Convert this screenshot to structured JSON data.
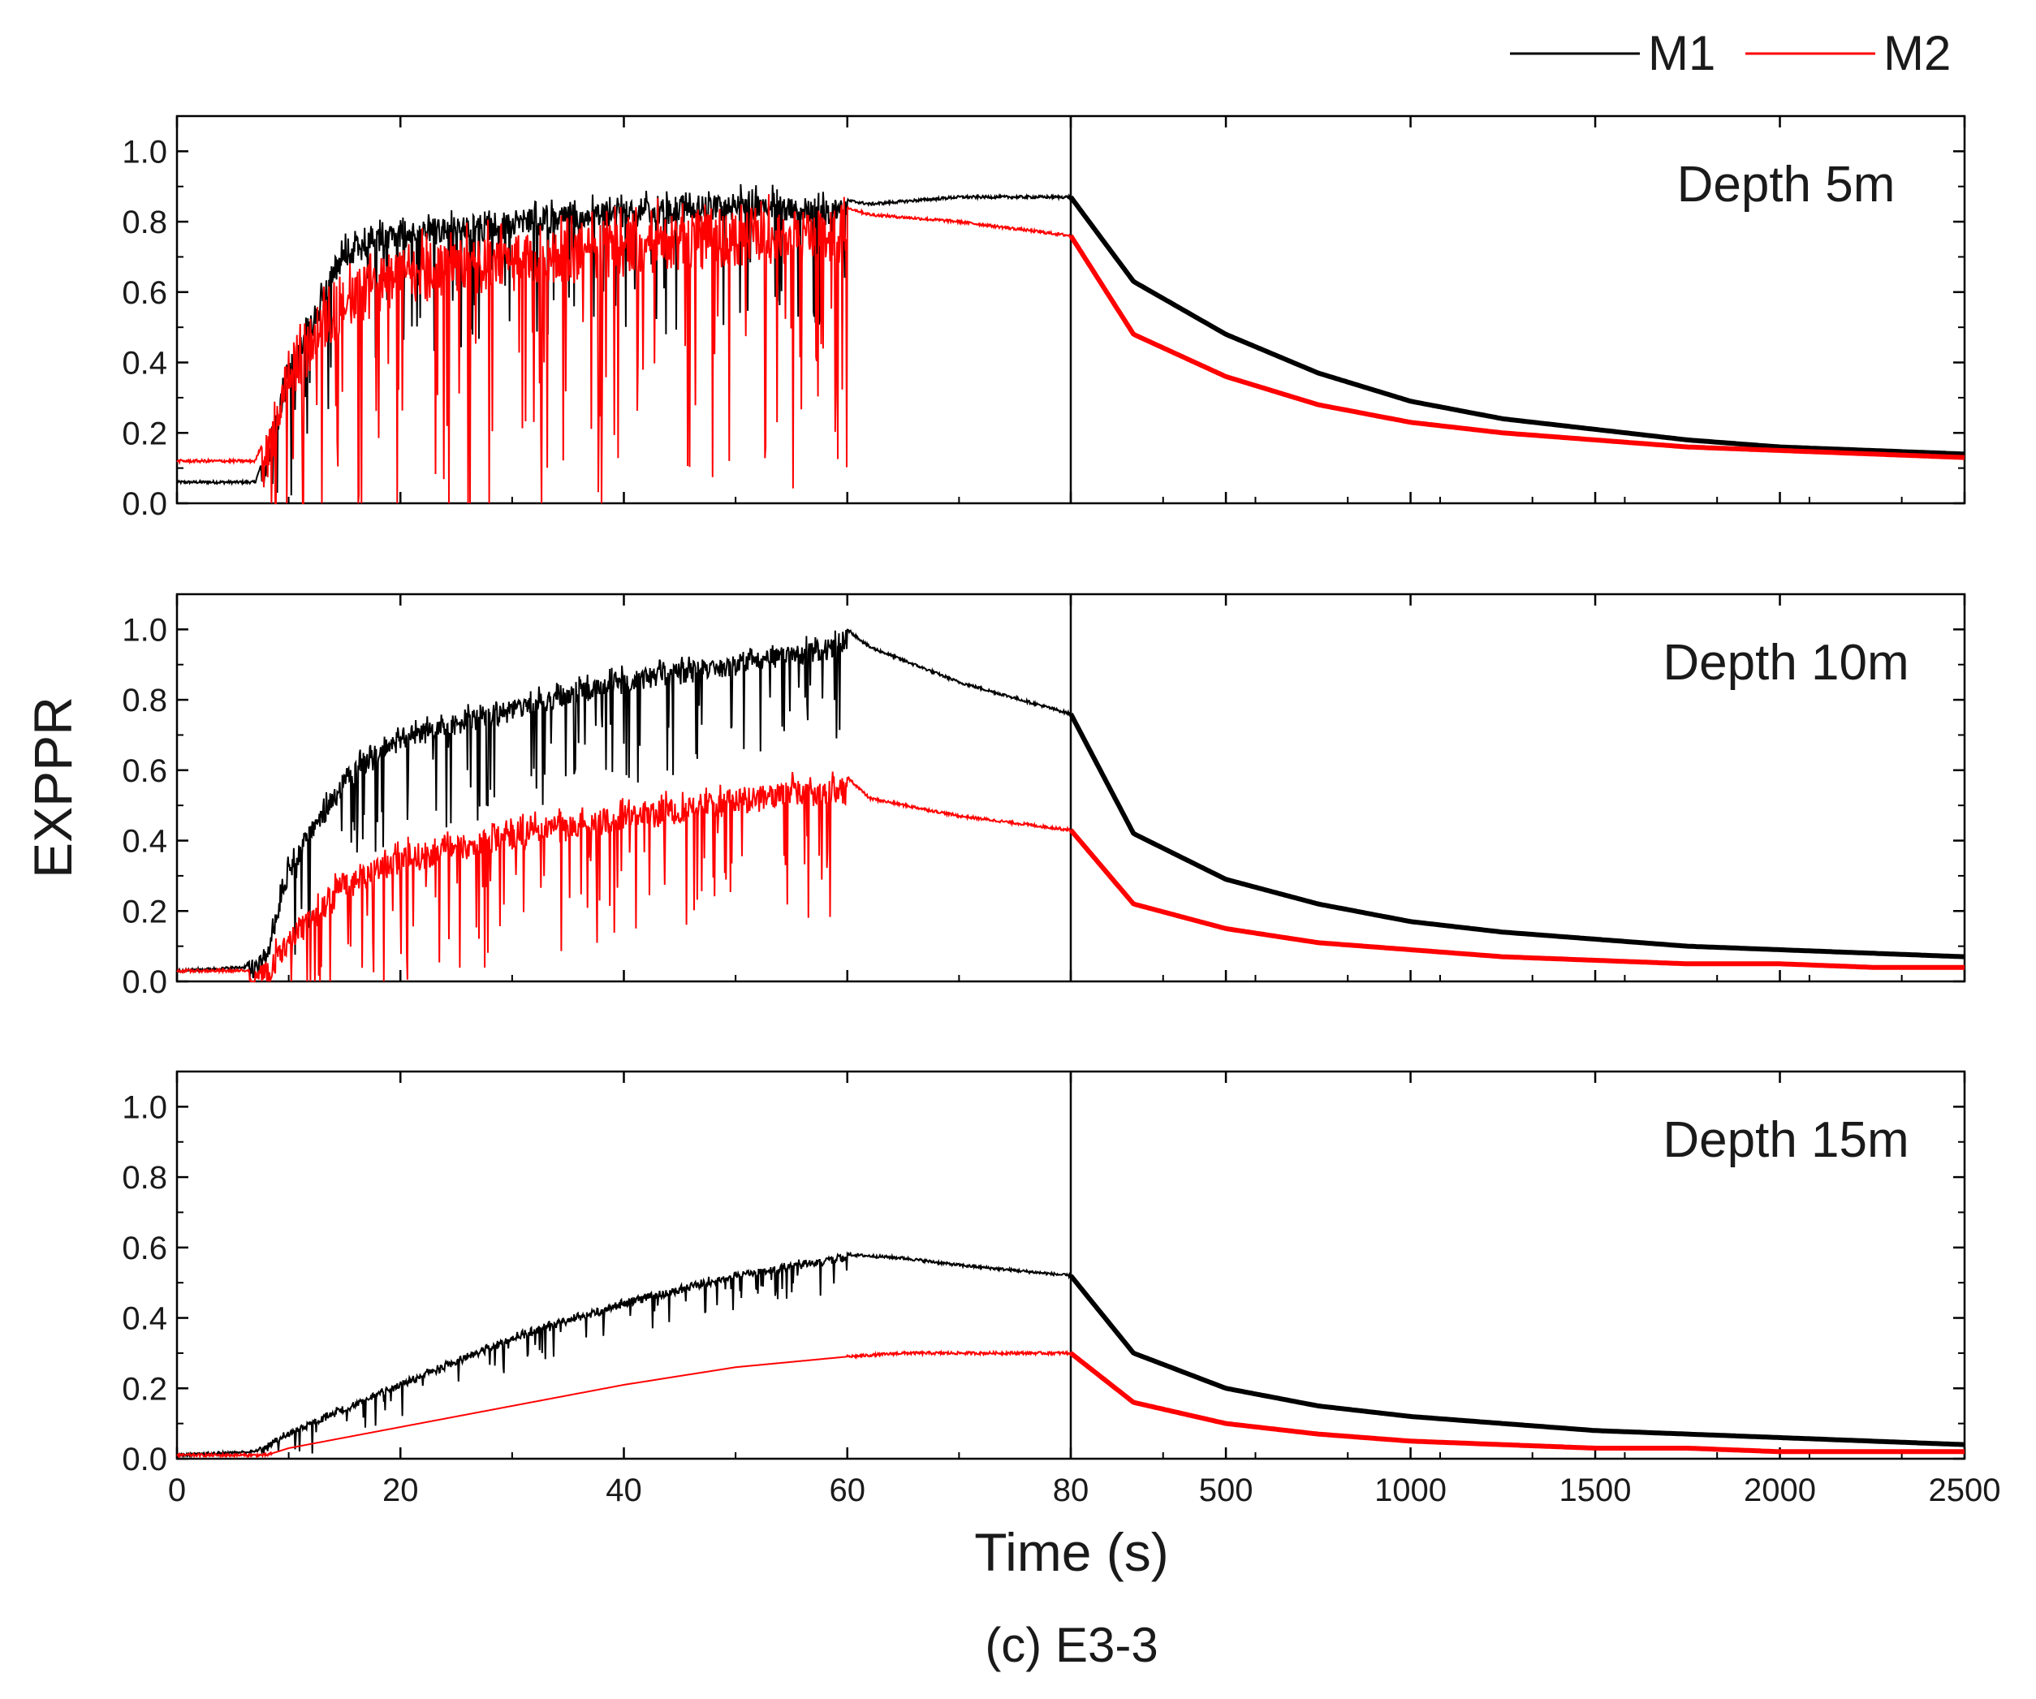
{
  "chart_data": {
    "type": "line",
    "caption": "(c) E3-3",
    "xlabel": "Time (s)",
    "ylabel": "EXPPR",
    "ylim": [
      0,
      1.1
    ],
    "y_ticks": [
      "0.0",
      "0.2",
      "0.4",
      "0.6",
      "0.8",
      "1.0"
    ],
    "x_segments": [
      {
        "range": [
          0,
          80
        ],
        "ticks": [
          "0",
          "20",
          "40",
          "60",
          "80"
        ]
      },
      {
        "range": [
          80,
          2500
        ],
        "ticks": [
          "500",
          "1000",
          "1500",
          "2000",
          "2500"
        ]
      }
    ],
    "legend": {
      "placement": "top-right",
      "entries": [
        "M1",
        "M2"
      ]
    },
    "series_colors": {
      "M1": "#000000",
      "M2": "#ff0000"
    },
    "panels": [
      {
        "title": "Depth 5m",
        "series": [
          {
            "name": "M1",
            "early": {
              "t": [
                0,
                7,
                8,
                10,
                15,
                20,
                30,
                40,
                50,
                60,
                62,
                70,
                80
              ],
              "y": [
                0.06,
                0.06,
                0.15,
                0.4,
                0.75,
                0.8,
                0.83,
                0.86,
                0.88,
                0.86,
                0.85,
                0.87,
                0.87
              ]
            },
            "late": {
              "t": [
                80,
                250,
                500,
                750,
                1000,
                1250,
                1500,
                1750,
                2000,
                2250,
                2500
              ],
              "y": [
                0.87,
                0.63,
                0.48,
                0.37,
                0.29,
                0.24,
                0.21,
                0.18,
                0.16,
                0.15,
                0.14
              ]
            }
          },
          {
            "name": "M2",
            "early": {
              "t": [
                0,
                7,
                8,
                10,
                15,
                20,
                30,
                40,
                50,
                60,
                62,
                70,
                80
              ],
              "y": [
                0.12,
                0.12,
                0.2,
                0.45,
                0.65,
                0.72,
                0.76,
                0.8,
                0.83,
                0.84,
                0.82,
                0.8,
                0.76
              ]
            },
            "late": {
              "t": [
                80,
                250,
                500,
                750,
                1000,
                1250,
                1500,
                1750,
                2000,
                2250,
                2500
              ],
              "y": [
                0.76,
                0.48,
                0.36,
                0.28,
                0.23,
                0.2,
                0.18,
                0.16,
                0.15,
                0.14,
                0.13
              ]
            }
          }
        ]
      },
      {
        "title": "Depth 10m",
        "series": [
          {
            "name": "M1",
            "early": {
              "t": [
                0,
                6,
                8,
                10,
                15,
                20,
                30,
                40,
                50,
                58,
                60,
                62,
                70,
                80
              ],
              "y": [
                0.03,
                0.04,
                0.1,
                0.35,
                0.6,
                0.72,
                0.8,
                0.88,
                0.93,
                0.97,
                1.0,
                0.95,
                0.85,
                0.76
              ]
            },
            "late": {
              "t": [
                80,
                250,
                500,
                750,
                1000,
                1250,
                1500,
                1750,
                2000,
                2250,
                2500
              ],
              "y": [
                0.76,
                0.42,
                0.29,
                0.22,
                0.17,
                0.14,
                0.12,
                0.1,
                0.09,
                0.08,
                0.07
              ]
            }
          },
          {
            "name": "M2",
            "early": {
              "t": [
                0,
                6,
                8,
                10,
                15,
                20,
                30,
                40,
                50,
                58,
                60,
                62,
                70,
                80
              ],
              "y": [
                0.03,
                0.03,
                0.05,
                0.15,
                0.3,
                0.38,
                0.45,
                0.5,
                0.55,
                0.57,
                0.58,
                0.52,
                0.47,
                0.43
              ]
            },
            "late": {
              "t": [
                80,
                250,
                500,
                750,
                1000,
                1250,
                1500,
                1750,
                2000,
                2250,
                2500
              ],
              "y": [
                0.43,
                0.22,
                0.15,
                0.11,
                0.09,
                0.07,
                0.06,
                0.05,
                0.05,
                0.04,
                0.04
              ]
            }
          }
        ]
      },
      {
        "title": "Depth 15m",
        "series": [
          {
            "name": "M1",
            "early": {
              "t": [
                0,
                7,
                10,
                20,
                30,
                40,
                50,
                58,
                60,
                65,
                70,
                80
              ],
              "y": [
                0.01,
                0.02,
                0.08,
                0.22,
                0.35,
                0.45,
                0.53,
                0.57,
                0.58,
                0.57,
                0.55,
                0.52
              ]
            },
            "late": {
              "t": [
                80,
                250,
                500,
                750,
                1000,
                1250,
                1500,
                1750,
                2000,
                2250,
                2500
              ],
              "y": [
                0.52,
                0.3,
                0.2,
                0.15,
                0.12,
                0.1,
                0.08,
                0.07,
                0.06,
                0.05,
                0.04
              ]
            }
          },
          {
            "name": "M2",
            "early": {
              "t": [
                0,
                8,
                10,
                20,
                30,
                40,
                50,
                60,
                65,
                70,
                80
              ],
              "y": [
                0.01,
                0.01,
                0.03,
                0.09,
                0.15,
                0.21,
                0.26,
                0.29,
                0.3,
                0.3,
                0.3
              ]
            },
            "late": {
              "t": [
                80,
                250,
                500,
                750,
                1000,
                1250,
                1500,
                1750,
                2000,
                2250,
                2500
              ],
              "y": [
                0.3,
                0.16,
                0.1,
                0.07,
                0.05,
                0.04,
                0.03,
                0.03,
                0.02,
                0.02,
                0.02
              ]
            }
          }
        ]
      }
    ]
  }
}
